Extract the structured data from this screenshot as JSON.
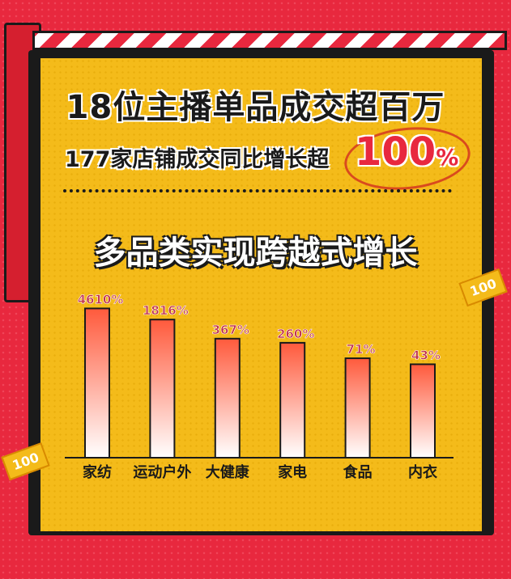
{
  "headline": "18位主播单品成交超百万",
  "subline": "177家店铺成交同比增长超",
  "subline_highlight": "100",
  "subline_highlight_unit": "%",
  "section_title": "多品类实现跨越式增长",
  "decor_ticket_text": "100",
  "colors": {
    "background": "#e8283e",
    "panel": "#f4bb1a",
    "bar_top": "#ff5a3c",
    "bar_bottom": "#ffffff",
    "value_label": "#c0304a"
  },
  "chart_data": {
    "type": "bar",
    "title": "多品类实现跨越式增长",
    "categories": [
      "家纺",
      "运动户外",
      "大健康",
      "家电",
      "食品",
      "内衣"
    ],
    "values": [
      4610,
      1816,
      367,
      260,
      71,
      43
    ],
    "value_labels": [
      "4610%",
      "1816%",
      "367%",
      "260%",
      "71%",
      "43%"
    ],
    "unit": "%",
    "scale": "non-linear (not to scale)",
    "grid": false,
    "legend": "none"
  }
}
